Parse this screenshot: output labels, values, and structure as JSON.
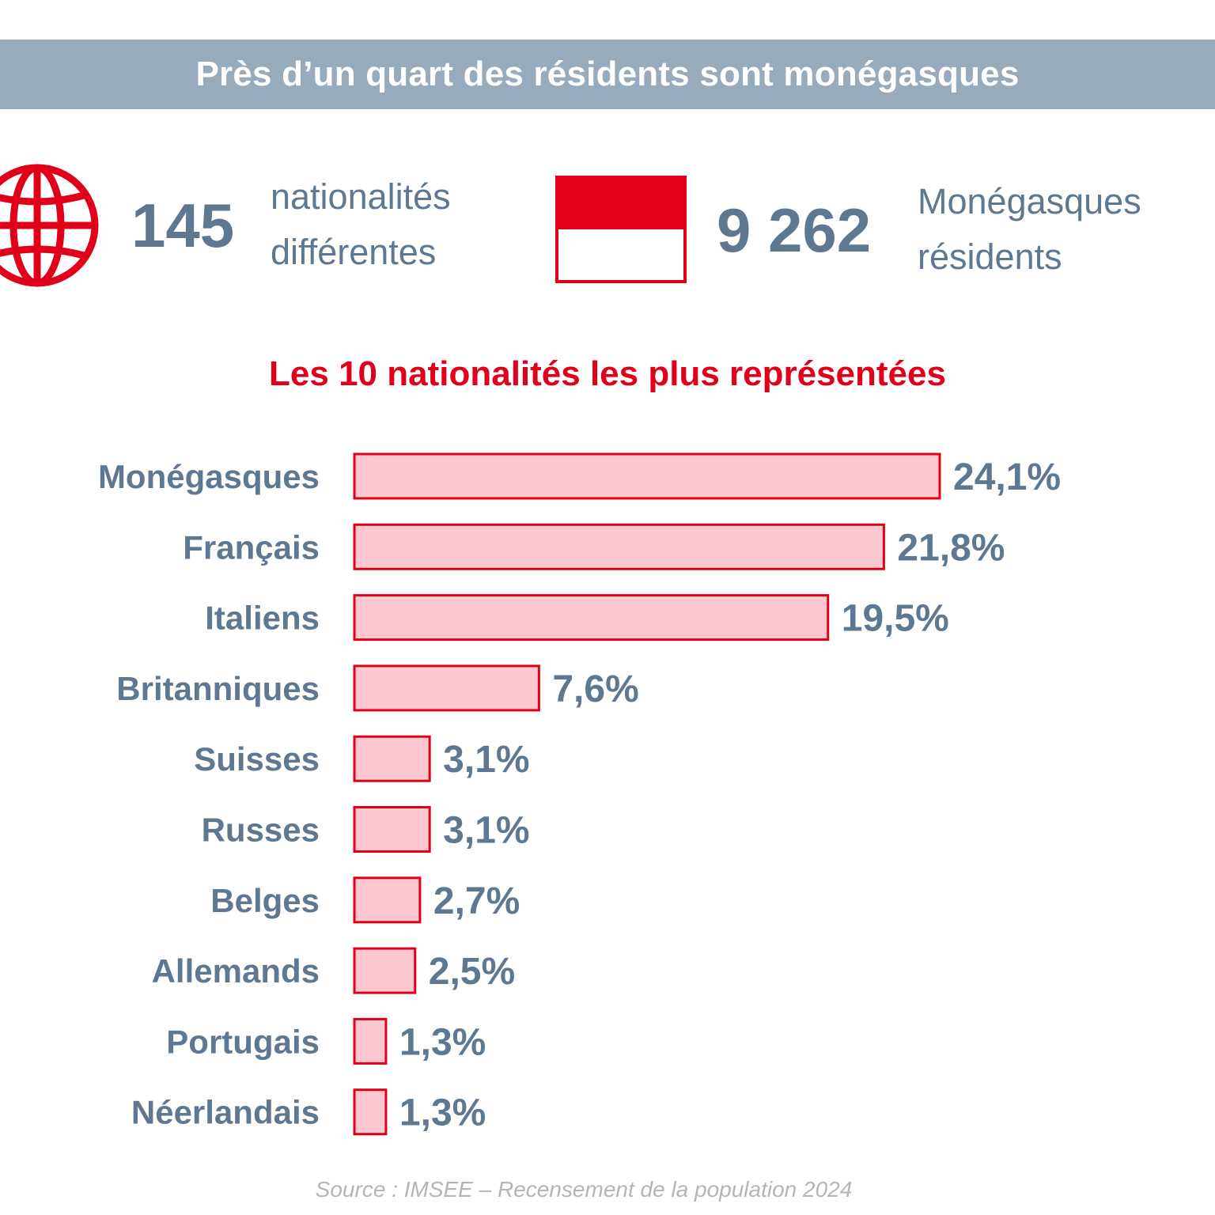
{
  "banner": {
    "title": "Près d’un quart des résidents sont monégasques"
  },
  "stats": [
    {
      "value": "145",
      "label_line1": "nationalités",
      "label_line2": "différentes",
      "icon": "globe-icon"
    },
    {
      "value": "9 262",
      "label_line1": "Monégasques",
      "label_line2": "résidents",
      "icon": "monaco-flag-icon"
    }
  ],
  "colors": {
    "accent_red": "#e1001a",
    "bar_fill": "#fbc8cf",
    "text_blue_gray": "#5f7891",
    "banner_bg": "#97abbd"
  },
  "chart_data": {
    "type": "bar",
    "orientation": "horizontal",
    "title": "Les 10 nationalités les plus représentées",
    "categories": [
      "Monégasques",
      "Français",
      "Italiens",
      "Britanniques",
      "Suisses",
      "Russes",
      "Belges",
      "Allemands",
      "Portugais",
      "Néerlandais"
    ],
    "values": [
      24.1,
      21.8,
      19.5,
      7.6,
      3.1,
      3.1,
      2.7,
      2.5,
      1.3,
      1.3
    ],
    "value_labels": [
      "24,1%",
      "21,8%",
      "19,5%",
      "7,6%",
      "3,1%",
      "3,1%",
      "2,7%",
      "2,5%",
      "1,3%",
      "1,3%"
    ],
    "unit": "%",
    "xlim": [
      0,
      24.1
    ],
    "grid": false
  },
  "source": "Source : IMSEE – Recensement de la population 2024"
}
